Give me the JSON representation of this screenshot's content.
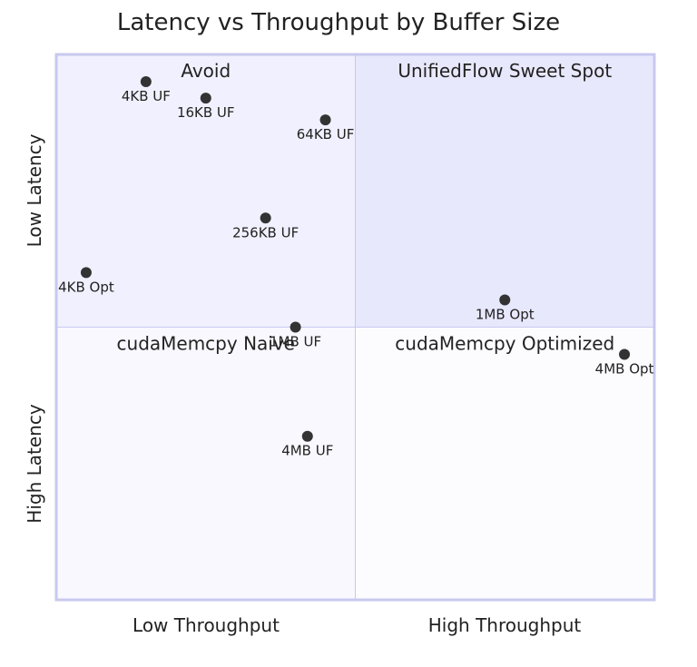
{
  "chart_data": {
    "type": "scatter",
    "subtype": "quadrant",
    "title": "Latency vs Throughput by Buffer Size",
    "x_axis": {
      "low_label": "Low Throughput",
      "high_label": "High Throughput"
    },
    "y_axis": {
      "low_label": "High Latency",
      "high_label": "Low Latency"
    },
    "xlim": [
      0,
      1
    ],
    "ylim": [
      0,
      1
    ],
    "quadrants": [
      {
        "id": "top-left",
        "label": "Avoid",
        "fill": "#f1f0fe"
      },
      {
        "id": "top-right",
        "label": "UnifiedFlow Sweet Spot",
        "fill": "#e8e8fd"
      },
      {
        "id": "bottom-left",
        "label": "cudaMemcpy Naive",
        "fill": "#f8f8fe"
      },
      {
        "id": "bottom-right",
        "label": "cudaMemcpy Optimized",
        "fill": "#fcfcff"
      }
    ],
    "points": [
      {
        "label": "4KB UF",
        "x": 0.15,
        "y": 0.95
      },
      {
        "label": "16KB UF",
        "x": 0.25,
        "y": 0.92
      },
      {
        "label": "64KB UF",
        "x": 0.45,
        "y": 0.88
      },
      {
        "label": "256KB UF",
        "x": 0.35,
        "y": 0.7
      },
      {
        "label": "4KB Opt",
        "x": 0.05,
        "y": 0.6
      },
      {
        "label": "1MB Opt",
        "x": 0.75,
        "y": 0.55
      },
      {
        "label": "1MB UF",
        "x": 0.4,
        "y": 0.5
      },
      {
        "label": "4MB Opt",
        "x": 0.95,
        "y": 0.45
      },
      {
        "label": "4MB UF",
        "x": 0.42,
        "y": 0.3
      }
    ],
    "colors": {
      "point": "#333333",
      "border": "#c8c8ef",
      "divider": "#c8c8ef",
      "text": "#222222"
    },
    "grid": false,
    "legend": "none"
  }
}
